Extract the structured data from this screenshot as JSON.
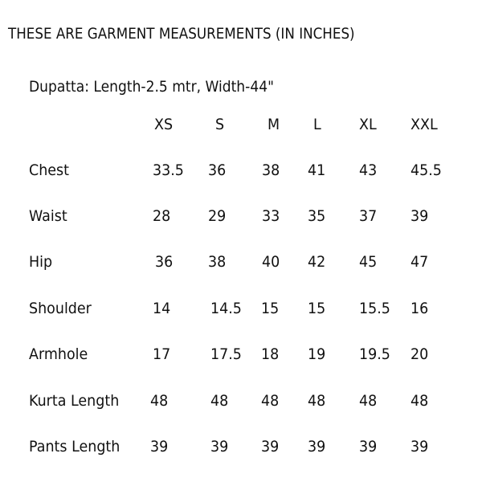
{
  "title": "THESE ARE GARMENT MEASUREMENTS (IN INCHES)",
  "dupatta": "Dupatta: Length-2.5 mtr, Width-44\"",
  "table": {
    "headers": [
      "XS",
      "S",
      "M",
      "L",
      "XL",
      "XXL"
    ],
    "rows": [
      {
        "label": "Chest",
        "values": [
          "33.5",
          "36",
          "38",
          "41",
          "43",
          "45.5"
        ]
      },
      {
        "label": "Waist",
        "values": [
          "28",
          "29",
          "33",
          "35",
          "37",
          "39"
        ]
      },
      {
        "label": "Hip",
        "values": [
          "36",
          "38",
          "40",
          "42",
          "45",
          "47"
        ]
      },
      {
        "label": "Shoulder",
        "values": [
          "14",
          "14.5",
          "15",
          "15",
          "15.5",
          "16"
        ]
      },
      {
        "label": "Armhole",
        "values": [
          "17",
          "17.5",
          "18",
          "19",
          "19.5",
          "20"
        ]
      },
      {
        "label": "Kurta Length",
        "values": [
          "48",
          "48",
          "48",
          "48",
          "48",
          "48"
        ]
      },
      {
        "label": "Pants Length",
        "values": [
          "39",
          "39",
          "39",
          "39",
          "39",
          "39"
        ]
      }
    ]
  }
}
